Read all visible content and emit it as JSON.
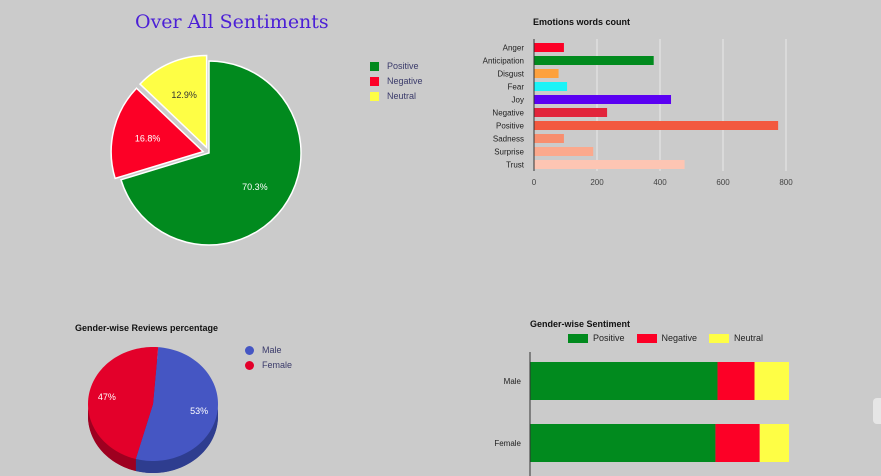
{
  "colors": {
    "positive": "#018a1e",
    "negative": "#fc0026",
    "neutral": "#fefe45",
    "male": "#4556c3",
    "female": "#e3002a"
  },
  "chart_data": [
    {
      "type": "pie",
      "title": "Over All Sentiments",
      "slices": [
        {
          "label": "Positive",
          "value": 70.3,
          "display": "70.3%",
          "color": "#018a1e"
        },
        {
          "label": "Negative",
          "value": 16.8,
          "display": "16.8%",
          "color": "#fc0026"
        },
        {
          "label": "Neutral",
          "value": 12.9,
          "display": "12.9%",
          "color": "#fefe45"
        }
      ],
      "legend": "right"
    },
    {
      "type": "bar",
      "orientation": "horizontal",
      "title": "Emotions words count",
      "categories": [
        "Anger",
        "Anticipation",
        "Disgust",
        "Fear",
        "Joy",
        "Negative",
        "Positive",
        "Sadness",
        "Surprise",
        "Trust"
      ],
      "values": [
        95,
        380,
        78,
        105,
        435,
        232,
        775,
        95,
        188,
        478
      ],
      "colors": [
        "#fc0026",
        "#018a1e",
        "#fda13d",
        "#1bf3f7",
        "#5a00f2",
        "#e2243b",
        "#f2593f",
        "#f88e6e",
        "#fba98d",
        "#fdc5b3"
      ],
      "xlim": [
        0,
        800
      ],
      "xticks": [
        "0",
        "200",
        "400",
        "600",
        "800"
      ],
      "grid": true
    },
    {
      "type": "pie",
      "title": "Gender-wise Reviews percentage",
      "slices": [
        {
          "label": "Male",
          "value": 53,
          "display": "53%",
          "color": "#4556c3"
        },
        {
          "label": "Female",
          "value": 47,
          "display": "47%",
          "color": "#e3002a"
        }
      ],
      "legend": "right",
      "style": "3d"
    },
    {
      "type": "bar",
      "orientation": "horizontal",
      "stacked": true,
      "title": "Gender-wise Sentiment",
      "categories": [
        "Male",
        "Female"
      ],
      "series": [
        {
          "name": "Positive",
          "values": [
            72.4,
            71.6
          ],
          "color": "#018a1e"
        },
        {
          "name": "Negative",
          "values": [
            14.3,
            17.1
          ],
          "color": "#fc0026"
        },
        {
          "name": "Neutral",
          "values": [
            13.3,
            11.3
          ],
          "color": "#fefe45"
        }
      ],
      "legend": "top"
    }
  ]
}
